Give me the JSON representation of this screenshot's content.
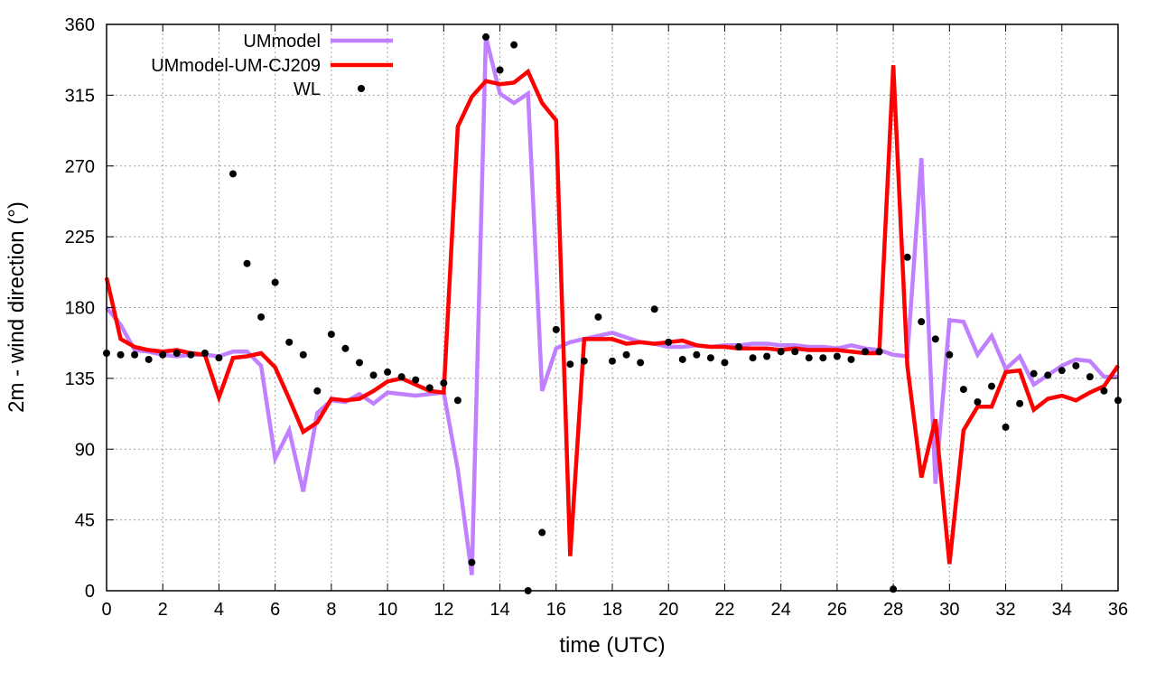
{
  "chart_data": {
    "type": "line",
    "title": "",
    "xlabel": "time (UTC)",
    "ylabel": "2m - wind direction (°)",
    "xlim": [
      0,
      36
    ],
    "ylim": [
      0,
      360
    ],
    "xticks": [
      0,
      2,
      4,
      6,
      8,
      10,
      12,
      14,
      16,
      18,
      20,
      22,
      24,
      26,
      28,
      30,
      32,
      34,
      36
    ],
    "yticks": [
      0,
      45,
      90,
      135,
      180,
      225,
      270,
      315,
      360
    ],
    "grid": true,
    "legend_position": "top-left",
    "x": [
      0,
      0.5,
      1,
      1.5,
      2,
      2.5,
      3,
      3.5,
      4,
      4.5,
      5,
      5.5,
      6,
      6.5,
      7,
      7.5,
      8,
      8.5,
      9,
      9.5,
      10,
      10.5,
      11,
      11.5,
      12,
      12.5,
      13,
      13.5,
      14,
      14.5,
      15,
      15.5,
      16,
      16.5,
      17,
      17.5,
      18,
      18.5,
      19,
      19.5,
      20,
      20.5,
      21,
      21.5,
      22,
      22.5,
      23,
      23.5,
      24,
      24.5,
      25,
      25.5,
      26,
      26.5,
      27,
      27.5,
      28,
      28.5,
      29,
      29.5,
      30,
      30.5,
      31,
      31.5,
      32,
      32.5,
      33,
      33.5,
      34,
      34.5,
      35,
      35.5,
      36
    ],
    "series": [
      {
        "name": "UMmodel",
        "style": "line",
        "color": "#c080ff",
        "values": [
          180,
          169,
          153,
          152,
          150,
          149,
          150,
          150,
          149,
          152,
          152,
          143,
          84,
          102,
          63,
          113,
          121,
          120,
          125,
          119,
          126,
          125,
          124,
          125,
          126,
          77,
          10,
          352,
          316,
          310,
          316,
          127,
          154,
          158,
          160,
          162,
          164,
          161,
          158,
          157,
          155,
          155,
          156,
          155,
          156,
          156,
          157,
          157,
          156,
          156,
          155,
          155,
          154,
          156,
          154,
          153,
          150,
          149,
          275,
          68,
          172,
          171,
          150,
          162,
          141,
          149,
          131,
          137,
          143,
          147,
          146,
          136,
          136
        ]
      },
      {
        "name": "UMmodel-UM-CJ209",
        "style": "line",
        "color": "#ff0000",
        "values": [
          199,
          160,
          155,
          153,
          152,
          153,
          151,
          150,
          123,
          148,
          149,
          151,
          142,
          122,
          101,
          107,
          122,
          121,
          122,
          127,
          133,
          135,
          131,
          127,
          126,
          295,
          314,
          324,
          322,
          323,
          330,
          310,
          299,
          22,
          160,
          160,
          160,
          157,
          158,
          157,
          158,
          159,
          156,
          155,
          155,
          154,
          154,
          154,
          153,
          154,
          153,
          153,
          153,
          152,
          151,
          151,
          334,
          143,
          72,
          109,
          17,
          102,
          117,
          117,
          139,
          140,
          115,
          122,
          124,
          121,
          126,
          130,
          143
        ]
      },
      {
        "name": "WL",
        "style": "points",
        "color": "#000000",
        "values": [
          151,
          150,
          150,
          147,
          150,
          151,
          150,
          151,
          148,
          265,
          208,
          174,
          196,
          158,
          150,
          127,
          163,
          154,
          145,
          137,
          139,
          136,
          134,
          129,
          132,
          121,
          18,
          352,
          331,
          347,
          0,
          37,
          166,
          144,
          146,
          174,
          146,
          150,
          145,
          179,
          158,
          147,
          150,
          148,
          145,
          155,
          148,
          149,
          152,
          152,
          148,
          148,
          149,
          147,
          152,
          152,
          1,
          212,
          171,
          160,
          150,
          128,
          120,
          130,
          104,
          119,
          138,
          137,
          140,
          143,
          136,
          127,
          121
        ]
      }
    ]
  }
}
